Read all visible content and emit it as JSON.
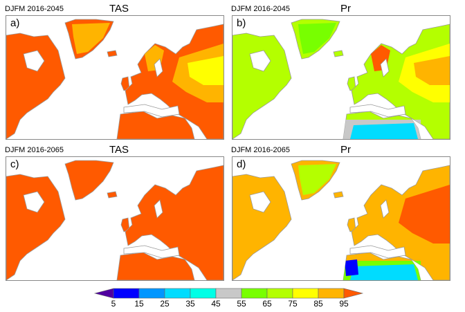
{
  "panels": [
    {
      "header": "DJFM 2016-2045",
      "title": "TAS",
      "label": "a)",
      "base": "#ff5a00",
      "patches": [
        [
          "#ffb400",
          "greenland"
        ],
        [
          "#ffb400",
          "russia"
        ],
        [
          "#ffff00",
          "russia-core"
        ],
        [
          "#ffb400",
          "scandinavia"
        ]
      ]
    },
    {
      "header": "DJFM 2016-2045",
      "title": "Pr",
      "label": "b)",
      "base": "#b4ff00",
      "patches": [
        [
          "#78ff00",
          "greenland"
        ],
        [
          "#ffff00",
          "russia"
        ],
        [
          "#ffb400",
          "russia-core"
        ],
        [
          "#c8c8c8",
          "africa"
        ],
        [
          "#00dcff",
          "sahara"
        ],
        [
          "#ff5a00",
          "scandinavia"
        ]
      ]
    },
    {
      "header": "DJFM 2016-2065",
      "title": "TAS",
      "label": "c)",
      "base": "#ff5a00",
      "patches": []
    },
    {
      "header": "DJFM 2016-2065",
      "title": "Pr",
      "label": "d)",
      "base": "#ffb400",
      "patches": [
        [
          "#b4ff00",
          "greenland"
        ],
        [
          "#ff5a00",
          "russia"
        ],
        [
          "#ff5a00",
          "russia-core"
        ],
        [
          "#78ff00",
          "africa"
        ],
        [
          "#00dcff",
          "sahara"
        ],
        [
          "#0000ff",
          "morocco"
        ]
      ]
    }
  ],
  "colorbar": {
    "ticks": [
      "5",
      "15",
      "25",
      "35",
      "45",
      "55",
      "65",
      "75",
      "85",
      "95"
    ],
    "colors": [
      "#5000a0",
      "#0000ff",
      "#0096ff",
      "#00dcff",
      "#00ffe6",
      "#c8c8c8",
      "#78ff00",
      "#b4ff00",
      "#ffff00",
      "#ffb400",
      "#ff5a00"
    ]
  }
}
